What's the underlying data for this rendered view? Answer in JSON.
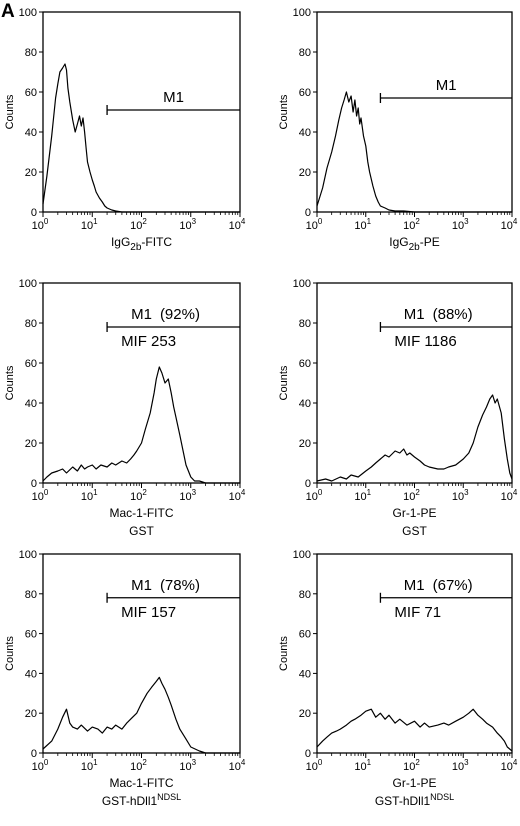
{
  "figure_label": "A",
  "colors": {
    "ink": "#000000",
    "background": "#ffffff"
  },
  "chart_data": [
    {
      "type": "histogram",
      "ylabel": "Counts",
      "xlabel": "IgG2b-FITC",
      "xlabel_parts": [
        "IgG",
        "2b",
        "-FITC"
      ],
      "xlabel2": "",
      "xscale": "log",
      "xlim": [
        1,
        10000
      ],
      "ylim": [
        0,
        100
      ],
      "yticks": [
        "0",
        "20",
        "40",
        "60",
        "80",
        "100"
      ],
      "xticks": [
        "10",
        "10",
        "10",
        "10",
        "10"
      ],
      "xtick_exps": [
        "0",
        "1",
        "2",
        "3",
        "4"
      ],
      "marker": {
        "label": "M1",
        "percent": "",
        "mif": "",
        "x_start": 20,
        "x_end": 10000,
        "y": 51
      },
      "series": [
        {
          "x": [
            1.0,
            1.2,
            1.5,
            1.8,
            2.0,
            2.2,
            2.5,
            2.8,
            3.0,
            3.2,
            3.5,
            4.0,
            4.5,
            5.0,
            5.5,
            6.0,
            6.5,
            7.0,
            7.5,
            8.0,
            9.0,
            10,
            11,
            12,
            14,
            16,
            18,
            20,
            25,
            30,
            40,
            100,
            1000,
            10000
          ],
          "y": [
            4,
            18,
            38,
            57,
            64,
            70,
            72,
            74,
            71,
            62,
            55,
            46,
            40,
            44,
            48,
            43,
            47,
            40,
            32,
            25,
            20,
            16,
            13,
            10,
            7,
            5,
            3,
            2,
            1,
            0.5,
            0,
            0,
            0,
            0
          ]
        }
      ]
    },
    {
      "type": "histogram",
      "ylabel": "Counts",
      "xlabel": "IgG2b-PE",
      "xlabel_parts": [
        "IgG",
        "2b",
        "-PE"
      ],
      "xlabel2": "",
      "xscale": "log",
      "xlim": [
        1,
        10000
      ],
      "ylim": [
        0,
        100
      ],
      "yticks": [
        "0",
        "20",
        "40",
        "60",
        "80",
        "100"
      ],
      "xticks": [
        "10",
        "10",
        "10",
        "10",
        "10"
      ],
      "xtick_exps": [
        "0",
        "1",
        "2",
        "3",
        "4"
      ],
      "marker": {
        "label": "M1",
        "percent": "",
        "mif": "",
        "x_start": 20,
        "x_end": 10000,
        "y": 57
      },
      "series": [
        {
          "x": [
            1.0,
            1.3,
            1.6,
            2.0,
            2.4,
            2.8,
            3.2,
            3.6,
            4.0,
            4.5,
            5.0,
            5.5,
            6.0,
            6.5,
            7.0,
            7.5,
            8.0,
            9.0,
            10,
            11,
            12,
            14,
            16,
            18,
            20,
            25,
            30,
            40,
            60,
            100,
            1000,
            10000
          ],
          "y": [
            3,
            12,
            22,
            30,
            38,
            46,
            52,
            56,
            60,
            55,
            58,
            50,
            56,
            48,
            52,
            44,
            47,
            38,
            33,
            25,
            20,
            13,
            8,
            5,
            3,
            2,
            1,
            0.5,
            0.5,
            0,
            0,
            0
          ]
        }
      ]
    },
    {
      "type": "histogram",
      "ylabel": "Counts",
      "xlabel": "Mac-1-FITC",
      "xlabel_parts": [
        "Mac-1-FITC"
      ],
      "xlabel2": "GST",
      "xscale": "log",
      "xlim": [
        1,
        10000
      ],
      "ylim": [
        0,
        100
      ],
      "yticks": [
        "0",
        "20",
        "40",
        "60",
        "80",
        "100"
      ],
      "xticks": [
        "10",
        "10",
        "10",
        "10",
        "10"
      ],
      "xtick_exps": [
        "0",
        "1",
        "2",
        "3",
        "4"
      ],
      "marker": {
        "label": "M1",
        "percent": "(92%)",
        "mif": "MIF 253",
        "x_start": 20,
        "x_end": 10000,
        "y": 78
      },
      "series": [
        {
          "x": [
            1.0,
            1.2,
            1.5,
            2.0,
            2.5,
            3.0,
            4.0,
            5.0,
            6.0,
            7.0,
            8.0,
            10,
            12,
            15,
            20,
            25,
            30,
            40,
            50,
            60,
            70,
            80,
            100,
            120,
            150,
            180,
            200,
            230,
            260,
            300,
            350,
            400,
            450,
            500,
            600,
            700,
            800,
            1000,
            1200,
            1500,
            2000,
            5000,
            10000
          ],
          "y": [
            1,
            3,
            5,
            6,
            7,
            5,
            8,
            6,
            9,
            7,
            8,
            9,
            7,
            9,
            8,
            10,
            9,
            11,
            10,
            12,
            14,
            16,
            20,
            27,
            35,
            45,
            52,
            58,
            55,
            50,
            52,
            45,
            38,
            33,
            24,
            16,
            9,
            3,
            1,
            1,
            0,
            0,
            0
          ]
        }
      ]
    },
    {
      "type": "histogram",
      "ylabel": "Counts",
      "xlabel": "Gr-1-PE",
      "xlabel_parts": [
        "Gr-1-PE"
      ],
      "xlabel2": "GST",
      "xscale": "log",
      "xlim": [
        1,
        10000
      ],
      "ylim": [
        0,
        100
      ],
      "yticks": [
        "0",
        "20",
        "40",
        "60",
        "80",
        "100"
      ],
      "xticks": [
        "10",
        "10",
        "10",
        "10",
        "10"
      ],
      "xtick_exps": [
        "0",
        "1",
        "2",
        "3",
        "4"
      ],
      "marker": {
        "label": "M1",
        "percent": "(88%)",
        "mif": "MIF 1186",
        "x_start": 20,
        "x_end": 10000,
        "y": 78
      },
      "series": [
        {
          "x": [
            1.0,
            1.5,
            2.0,
            3.0,
            4.0,
            5.0,
            7.0,
            10,
            13,
            16,
            20,
            25,
            30,
            40,
            50,
            60,
            70,
            80,
            100,
            130,
            160,
            200,
            300,
            400,
            500,
            700,
            1000,
            1300,
            1600,
            2000,
            2500,
            3000,
            3500,
            4000,
            4500,
            5000,
            6000,
            7000,
            8000,
            9000,
            10000
          ],
          "y": [
            1,
            2,
            1,
            3,
            2,
            4,
            3,
            6,
            8,
            10,
            12,
            14,
            13,
            16,
            15,
            17,
            14,
            15,
            13,
            11,
            9,
            8,
            7,
            7,
            8,
            9,
            12,
            15,
            20,
            28,
            34,
            38,
            42,
            44,
            40,
            42,
            35,
            22,
            12,
            5,
            2
          ]
        }
      ]
    },
    {
      "type": "histogram",
      "ylabel": "Counts",
      "xlabel": "Mac-1-FITC",
      "xlabel_parts": [
        "Mac-1-FITC"
      ],
      "xlabel2": "GST-hDll1NDSL",
      "xlabel2_parts": [
        "GST-hDll1",
        "NDSL"
      ],
      "xscale": "log",
      "xlim": [
        1,
        10000
      ],
      "ylim": [
        0,
        100
      ],
      "yticks": [
        "0",
        "20",
        "40",
        "60",
        "80",
        "100"
      ],
      "xticks": [
        "10",
        "10",
        "10",
        "10",
        "10"
      ],
      "xtick_exps": [
        "0",
        "1",
        "2",
        "3",
        "4"
      ],
      "marker": {
        "label": "M1",
        "percent": "(78%)",
        "mif": "MIF 157",
        "x_start": 20,
        "x_end": 10000,
        "y": 78
      },
      "series": [
        {
          "x": [
            1.0,
            1.5,
            2.0,
            2.5,
            3.0,
            3.5,
            4.0,
            5.0,
            6.0,
            8.0,
            10,
            13,
            16,
            20,
            25,
            30,
            40,
            50,
            60,
            80,
            100,
            130,
            160,
            200,
            230,
            260,
            300,
            350,
            400,
            500,
            600,
            800,
            1000,
            1500,
            2000,
            5000,
            10000
          ],
          "y": [
            2,
            6,
            12,
            18,
            22,
            15,
            13,
            12,
            14,
            11,
            13,
            12,
            10,
            13,
            12,
            14,
            12,
            15,
            17,
            20,
            25,
            30,
            33,
            36,
            38,
            35,
            32,
            28,
            24,
            17,
            12,
            7,
            3,
            1,
            0,
            0,
            0
          ]
        }
      ]
    },
    {
      "type": "histogram",
      "ylabel": "Counts",
      "xlabel": "Gr-1-PE",
      "xlabel_parts": [
        "Gr-1-PE"
      ],
      "xlabel2": "GST-hDll1NDSL",
      "xlabel2_parts": [
        "GST-hDll1",
        "NDSL"
      ],
      "xscale": "log",
      "xlim": [
        1,
        10000
      ],
      "ylim": [
        0,
        100
      ],
      "yticks": [
        "0",
        "20",
        "40",
        "60",
        "80",
        "100"
      ],
      "xticks": [
        "10",
        "10",
        "10",
        "10",
        "10"
      ],
      "xtick_exps": [
        "0",
        "1",
        "2",
        "3",
        "4"
      ],
      "marker": {
        "label": "M1",
        "percent": "(67%)",
        "mif": "MIF 71",
        "x_start": 20,
        "x_end": 10000,
        "y": 78
      },
      "series": [
        {
          "x": [
            1.0,
            1.3,
            1.6,
            2.0,
            2.5,
            3.0,
            4.0,
            5.0,
            6.0,
            8.0,
            10,
            13,
            16,
            20,
            25,
            30,
            40,
            50,
            70,
            100,
            130,
            160,
            200,
            300,
            400,
            500,
            700,
            1000,
            1300,
            1600,
            2000,
            2500,
            3000,
            4000,
            5000,
            6000,
            7000,
            8000,
            10000
          ],
          "y": [
            3,
            6,
            8,
            10,
            11,
            12,
            14,
            16,
            17,
            19,
            21,
            22,
            18,
            20,
            17,
            19,
            15,
            17,
            14,
            16,
            13,
            15,
            13,
            14,
            15,
            14,
            16,
            18,
            20,
            22,
            19,
            17,
            15,
            13,
            10,
            8,
            6,
            3,
            1
          ]
        }
      ]
    }
  ]
}
